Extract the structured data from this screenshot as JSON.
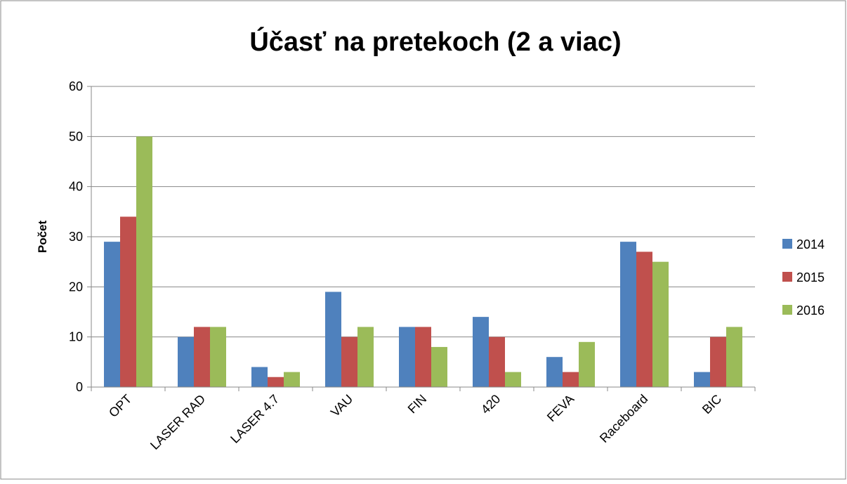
{
  "chart_data": {
    "type": "bar",
    "title": "Účasť na pretekoch  (2 a viac)",
    "y_label": "Počet",
    "categories": [
      "OPT",
      "LASER RAD",
      "LASER 4.7",
      "VAU",
      "FIN",
      "420",
      "FEVA",
      "Raceboard",
      "BIC"
    ],
    "series": [
      {
        "name": "2014",
        "color": "#4f81bd",
        "values": [
          29,
          10,
          4,
          19,
          12,
          14,
          6,
          29,
          3
        ]
      },
      {
        "name": "2015",
        "color": "#c0504d",
        "values": [
          34,
          12,
          2,
          10,
          12,
          10,
          3,
          27,
          10
        ]
      },
      {
        "name": "2016",
        "color": "#9bbb59",
        "values": [
          50,
          12,
          3,
          12,
          8,
          3,
          9,
          25,
          12
        ]
      }
    ],
    "ylim": [
      0,
      60
    ],
    "yticks": [
      0,
      10,
      20,
      30,
      40,
      50,
      60
    ],
    "grid": true,
    "legend": "right"
  }
}
